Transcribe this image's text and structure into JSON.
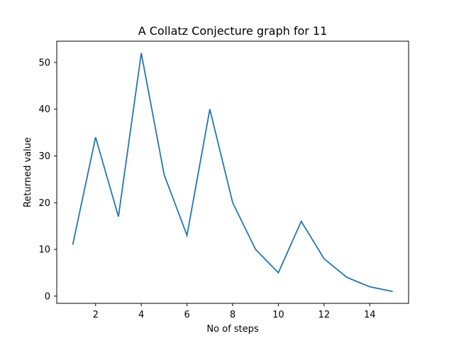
{
  "chart_data": {
    "type": "line",
    "title": "A Collatz Conjecture graph for 11",
    "xlabel": "No of steps",
    "ylabel": "Returned value",
    "x": [
      1,
      2,
      3,
      4,
      5,
      6,
      7,
      8,
      9,
      10,
      11,
      12,
      13,
      14,
      15
    ],
    "series": [
      {
        "values": [
          11,
          34,
          17,
          52,
          26,
          13,
          40,
          20,
          10,
          5,
          16,
          8,
          4,
          2,
          1
        ],
        "color": "#1f77b4"
      }
    ],
    "xticks": [
      "2",
      "4",
      "6",
      "8",
      "10",
      "12",
      "14"
    ],
    "yticks": [
      "0",
      "10",
      "20",
      "30",
      "40",
      "50"
    ],
    "xlim": [
      0.3,
      15.7
    ],
    "ylim": [
      -1.55,
      54.55
    ],
    "grid": false,
    "legend": "none"
  }
}
